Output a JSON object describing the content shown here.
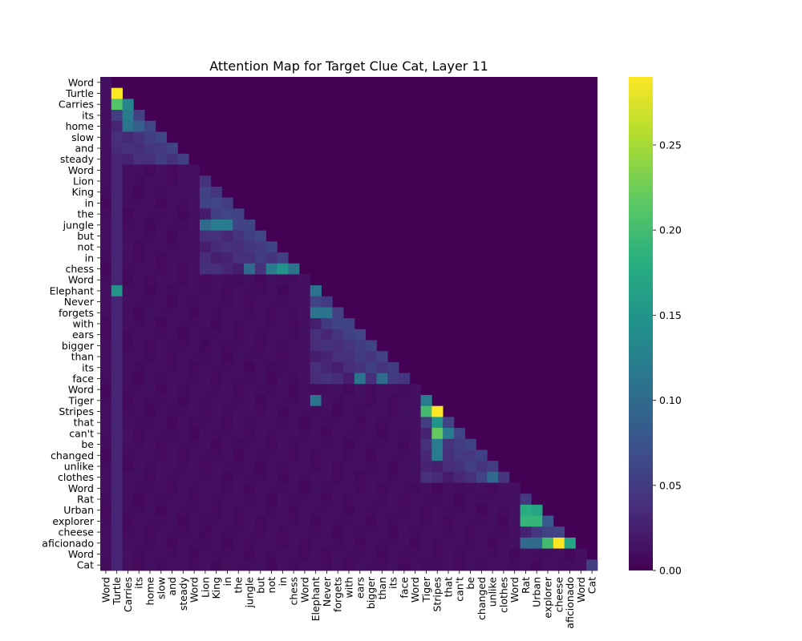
{
  "chart_data": {
    "type": "heatmap",
    "title": "Attention Map for Target Clue Cat, Layer 11",
    "tokens": [
      "Word",
      "Turtle",
      "Carries",
      "its",
      "home",
      "slow",
      "and",
      "steady",
      "Word",
      "Lion",
      "King",
      "in",
      "the",
      "jungle",
      "but",
      "not",
      "in",
      "chess",
      "Word",
      "Elephant",
      "Never",
      "forgets",
      "with",
      "ears",
      "bigger",
      "than",
      "its",
      "face",
      "Word",
      "Tiger",
      "Stripes",
      "that",
      "can't",
      "be",
      "changed",
      "unlike",
      "clothes",
      "Word",
      "Rat",
      "Urban",
      "explorer",
      "cheese",
      "aficionado",
      "Word",
      "Cat"
    ],
    "groups": [
      {
        "clue": "Turtle",
        "start": 0,
        "end": 7
      },
      {
        "clue": "Lion",
        "start": 8,
        "end": 17
      },
      {
        "clue": "Elephant",
        "start": 18,
        "end": 27
      },
      {
        "clue": "Tiger",
        "start": 28,
        "end": 36
      },
      {
        "clue": "Rat",
        "start": 37,
        "end": 42
      },
      {
        "clue": "Cat",
        "start": 43,
        "end": 44
      }
    ],
    "mask": "lower-triangular",
    "colormap": "viridis",
    "vmin": 0.0,
    "vmax": 0.29,
    "colorbar_ticks": [
      "0.00",
      "0.05",
      "0.10",
      "0.15",
      "0.20",
      "0.25"
    ],
    "colorbar_tick_values": [
      0.0,
      0.05,
      0.1,
      0.15,
      0.2,
      0.25
    ],
    "highlights": [
      {
        "row": 1,
        "col": 1,
        "value": 0.29
      },
      {
        "row": 2,
        "col": 1,
        "value": 0.21
      },
      {
        "row": 2,
        "col": 2,
        "value": 0.13
      },
      {
        "row": 3,
        "col": 2,
        "value": 0.12
      },
      {
        "row": 4,
        "col": 2,
        "value": 0.11
      },
      {
        "row": 4,
        "col": 3,
        "value": 0.09
      },
      {
        "row": 13,
        "col": 9,
        "value": 0.1
      },
      {
        "row": 13,
        "col": 10,
        "value": 0.12
      },
      {
        "row": 13,
        "col": 11,
        "value": 0.12
      },
      {
        "row": 17,
        "col": 13,
        "value": 0.1
      },
      {
        "row": 17,
        "col": 15,
        "value": 0.12
      },
      {
        "row": 17,
        "col": 16,
        "value": 0.15
      },
      {
        "row": 17,
        "col": 17,
        "value": 0.11
      },
      {
        "row": 19,
        "col": 1,
        "value": 0.15
      },
      {
        "row": 19,
        "col": 19,
        "value": 0.11
      },
      {
        "row": 21,
        "col": 19,
        "value": 0.11
      },
      {
        "row": 21,
        "col": 20,
        "value": 0.11
      },
      {
        "row": 27,
        "col": 23,
        "value": 0.11
      },
      {
        "row": 27,
        "col": 25,
        "value": 0.1
      },
      {
        "row": 29,
        "col": 19,
        "value": 0.11
      },
      {
        "row": 29,
        "col": 29,
        "value": 0.12
      },
      {
        "row": 30,
        "col": 29,
        "value": 0.2
      },
      {
        "row": 30,
        "col": 30,
        "value": 0.29
      },
      {
        "row": 31,
        "col": 30,
        "value": 0.15
      },
      {
        "row": 32,
        "col": 30,
        "value": 0.22
      },
      {
        "row": 32,
        "col": 31,
        "value": 0.12
      },
      {
        "row": 33,
        "col": 30,
        "value": 0.12
      },
      {
        "row": 34,
        "col": 30,
        "value": 0.12
      },
      {
        "row": 36,
        "col": 35,
        "value": 0.1
      },
      {
        "row": 39,
        "col": 38,
        "value": 0.18
      },
      {
        "row": 39,
        "col": 39,
        "value": 0.17
      },
      {
        "row": 40,
        "col": 38,
        "value": 0.19
      },
      {
        "row": 40,
        "col": 39,
        "value": 0.19
      },
      {
        "row": 40,
        "col": 40,
        "value": 0.08
      },
      {
        "row": 42,
        "col": 38,
        "value": 0.1
      },
      {
        "row": 42,
        "col": 39,
        "value": 0.1
      },
      {
        "row": 42,
        "col": 40,
        "value": 0.2
      },
      {
        "row": 42,
        "col": 41,
        "value": 0.29
      },
      {
        "row": 42,
        "col": 42,
        "value": 0.17
      }
    ]
  }
}
